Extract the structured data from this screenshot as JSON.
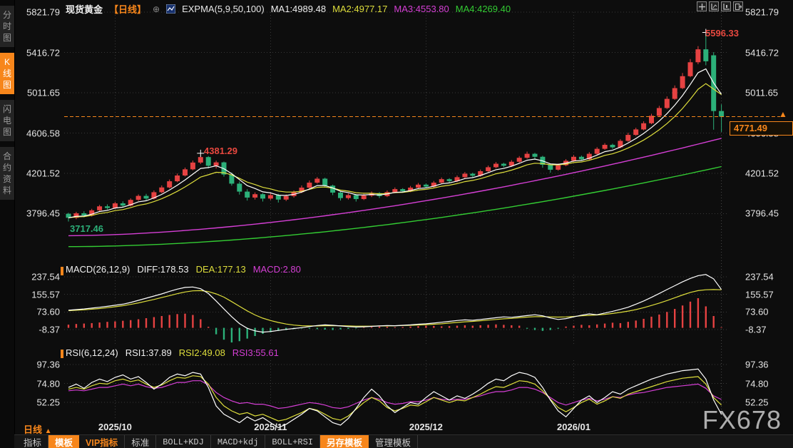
{
  "colors": {
    "up": "#e64242",
    "down": "#2cb079",
    "accent": "#f7861b",
    "ma1": "#ffffff",
    "ma2": "#dede3c",
    "ma3": "#d53fd5",
    "ma4": "#33cc33",
    "grid": "#383838",
    "label_red": "#e8483f",
    "label_green": "#2cb079"
  },
  "sidebar": {
    "items": [
      {
        "label": "分时图",
        "selected": false
      },
      {
        "label": "K线图",
        "selected": true
      },
      {
        "label": "闪电图",
        "selected": false
      },
      {
        "label": "合约资料",
        "selected": false
      }
    ]
  },
  "header": {
    "symbol": "现货黄金",
    "period_tag": "【日线】",
    "plus": "⊕",
    "indicator": "EXPMA(5,9,50,100)",
    "ma1": "MA1:4989.48",
    "ma2": "MA2:4977.17",
    "ma3": "MA3:4553.80",
    "ma4": "MA4:4269.40",
    "icons": [
      "crosshair-icon",
      "axis-scale-icon",
      "axis-panel-icon",
      "collapse-icon"
    ]
  },
  "macd_row": {
    "label": "MACD(26,12,9)",
    "diff": "DIFF:178.53",
    "dea": "DEA:177.13",
    "macd": "MACD:2.80"
  },
  "rsi_row": {
    "label": "RSI(6,12,24)",
    "rsi1": "RSI1:37.89",
    "rsi2": "RSI2:49.08",
    "rsi3": "RSI3:55.61"
  },
  "annotations": {
    "high1": "4381.29",
    "high2": "5596.33",
    "low": "3717.46",
    "current": "4771.49",
    "arrow": "▲"
  },
  "xaxis": {
    "period": "日线",
    "arrow": "▲"
  },
  "toolbar": {
    "items": [
      {
        "label": "指标",
        "style": "plain"
      },
      {
        "label": "模板",
        "style": "active"
      },
      {
        "label": "VIP指标",
        "style": "vip"
      },
      {
        "label": "标准",
        "style": "plain"
      },
      {
        "label": "BOLL+KDJ",
        "style": "mono"
      },
      {
        "label": "MACD+kdj",
        "style": "mono"
      },
      {
        "label": "BOLL+RSI",
        "style": "mono"
      },
      {
        "label": "另存模板",
        "style": "active"
      },
      {
        "label": "管理模板",
        "style": "plain"
      }
    ]
  },
  "watermark": "FX678",
  "chart_data": {
    "type": "candlestick",
    "symbol": "现货黄金",
    "period": "日线",
    "main_ticks": [
      5821.79,
      5416.72,
      5011.65,
      4606.58,
      4201.52,
      3796.45
    ],
    "current_price": 4771.49,
    "months": [
      {
        "label": "2025/10",
        "index": 6
      },
      {
        "label": "2025/11",
        "index": 26
      },
      {
        "label": "2025/12",
        "index": 46
      },
      {
        "label": "2026/01",
        "index": 65
      }
    ],
    "peaks": {
      "high1": 4381.29,
      "high1_index": 17,
      "high2": 5596.33,
      "high2_index": 82,
      "low": 3717.46,
      "low_index": 0
    },
    "expma": {
      "periods": [
        5,
        9,
        50,
        100
      ],
      "ma1": 4989.48,
      "ma2": 4977.17,
      "ma3": 4553.8,
      "ma4": 4269.4,
      "ma3_start": 3575,
      "ma4_start": 3465
    },
    "candles": [
      [
        3795,
        3805,
        3717.46,
        3755
      ],
      [
        3755,
        3815,
        3740,
        3800
      ],
      [
        3800,
        3820,
        3760,
        3778
      ],
      [
        3778,
        3845,
        3768,
        3830
      ],
      [
        3830,
        3885,
        3820,
        3870
      ],
      [
        3870,
        3890,
        3838,
        3853
      ],
      [
        3853,
        3915,
        3845,
        3900
      ],
      [
        3900,
        3920,
        3862,
        3878
      ],
      [
        3878,
        3950,
        3868,
        3935
      ],
      [
        3935,
        3990,
        3925,
        3975
      ],
      [
        3975,
        3995,
        3932,
        3948
      ],
      [
        3948,
        4030,
        3938,
        4012
      ],
      [
        4012,
        4080,
        4002,
        4060
      ],
      [
        4060,
        4140,
        4050,
        4122
      ],
      [
        4122,
        4200,
        4112,
        4180
      ],
      [
        4180,
        4260,
        4170,
        4242
      ],
      [
        4242,
        4330,
        4232,
        4310
      ],
      [
        4310,
        4381.29,
        4295,
        4365
      ],
      [
        4365,
        4375,
        4252,
        4278
      ],
      [
        4278,
        4330,
        4250,
        4312
      ],
      [
        4312,
        4320,
        4168,
        4190
      ],
      [
        4190,
        4210,
        4078,
        4098
      ],
      [
        4098,
        4120,
        3988,
        4018
      ],
      [
        4018,
        4042,
        3928,
        3958
      ],
      [
        3958,
        4010,
        3938,
        3992
      ],
      [
        3992,
        4002,
        3918,
        3948
      ],
      [
        3948,
        4000,
        3933,
        3983
      ],
      [
        3983,
        3995,
        3908,
        3938
      ],
      [
        3938,
        3990,
        3923,
        3973
      ],
      [
        3973,
        4030,
        3958,
        4013
      ],
      [
        4013,
        4080,
        4003,
        4058
      ],
      [
        4058,
        4130,
        4048,
        4108
      ],
      [
        4108,
        4165,
        4098,
        4148
      ],
      [
        4148,
        4158,
        4058,
        4078
      ],
      [
        4078,
        4088,
        3983,
        4008
      ],
      [
        4008,
        4018,
        3928,
        3953
      ],
      [
        3953,
        4000,
        3938,
        3983
      ],
      [
        3983,
        3993,
        3918,
        3943
      ],
      [
        3943,
        3995,
        3933,
        3978
      ],
      [
        3978,
        4020,
        3963,
        4003
      ],
      [
        4003,
        4013,
        3953,
        3973
      ],
      [
        3973,
        4030,
        3963,
        4013
      ],
      [
        4013,
        4060,
        4003,
        4043
      ],
      [
        4043,
        4053,
        4008,
        4023
      ],
      [
        4023,
        4075,
        4013,
        4058
      ],
      [
        4058,
        4105,
        4048,
        4088
      ],
      [
        4088,
        4100,
        4053,
        4068
      ],
      [
        4068,
        4125,
        4058,
        4108
      ],
      [
        4108,
        4160,
        4098,
        4143
      ],
      [
        4143,
        4153,
        4108,
        4123
      ],
      [
        4123,
        4180,
        4113,
        4163
      ],
      [
        4163,
        4215,
        4153,
        4198
      ],
      [
        4198,
        4208,
        4163,
        4178
      ],
      [
        4178,
        4240,
        4168,
        4223
      ],
      [
        4223,
        4280,
        4213,
        4263
      ],
      [
        4263,
        4315,
        4253,
        4298
      ],
      [
        4298,
        4308,
        4263,
        4278
      ],
      [
        4278,
        4335,
        4268,
        4318
      ],
      [
        4318,
        4375,
        4308,
        4358
      ],
      [
        4358,
        4420,
        4348,
        4398
      ],
      [
        4398,
        4408,
        4338,
        4368
      ],
      [
        4368,
        4378,
        4258,
        4288
      ],
      [
        4288,
        4298,
        4208,
        4238
      ],
      [
        4238,
        4300,
        4228,
        4283
      ],
      [
        4283,
        4345,
        4273,
        4328
      ],
      [
        4328,
        4385,
        4318,
        4368
      ],
      [
        4368,
        4380,
        4328,
        4343
      ],
      [
        4343,
        4415,
        4333,
        4398
      ],
      [
        4398,
        4465,
        4388,
        4448
      ],
      [
        4448,
        4505,
        4438,
        4488
      ],
      [
        4488,
        4500,
        4448,
        4463
      ],
      [
        4463,
        4545,
        4453,
        4528
      ],
      [
        4528,
        4610,
        4518,
        4588
      ],
      [
        4588,
        4660,
        4578,
        4643
      ],
      [
        4643,
        4725,
        4633,
        4705
      ],
      [
        4705,
        4800,
        4695,
        4780
      ],
      [
        4780,
        4880,
        4770,
        4858
      ],
      [
        4858,
        4975,
        4848,
        4950
      ],
      [
        4950,
        5085,
        4940,
        5058
      ],
      [
        5058,
        5210,
        5048,
        5178
      ],
      [
        5178,
        5350,
        5168,
        5318
      ],
      [
        5318,
        5480,
        5298,
        5448
      ],
      [
        5448,
        5596.33,
        5288,
        5328
      ],
      [
        5388,
        5420,
        4640,
        4828
      ],
      [
        4828,
        4895,
        4618,
        4771.49
      ]
    ],
    "macd": {
      "params": [
        26,
        12,
        9
      ],
      "diff_last": 178.53,
      "dea_last": 177.13,
      "macd_last": 2.8,
      "ticks": [
        237.54,
        155.57,
        73.6,
        -8.37
      ],
      "diff": [
        82,
        85,
        88,
        92,
        96,
        100,
        105,
        110,
        118,
        128,
        138,
        148,
        158,
        170,
        180,
        188,
        190,
        182,
        160,
        125,
        88,
        52,
        20,
        -2,
        -14,
        -20,
        -17,
        -12,
        -7,
        -3,
        1,
        6,
        11,
        14,
        12,
        9,
        6,
        4,
        5,
        7,
        9,
        11,
        10,
        12,
        14,
        17,
        19,
        22,
        26,
        30,
        34,
        37,
        35,
        39,
        43,
        47,
        51,
        49,
        53,
        57,
        61,
        56,
        46,
        39,
        43,
        51,
        59,
        65,
        61,
        69,
        77,
        86,
        96,
        110,
        125,
        142,
        160,
        178,
        196,
        214,
        230,
        243,
        248,
        228,
        178.53
      ],
      "dea": [
        80,
        82,
        84,
        87,
        90,
        94,
        98,
        103,
        109,
        116,
        124,
        132,
        141,
        150,
        159,
        167,
        172,
        173,
        169,
        158,
        143,
        122,
        100,
        79,
        60,
        45,
        34,
        25,
        18,
        13,
        10,
        9,
        9,
        10,
        10,
        10,
        9,
        8,
        8,
        8,
        9,
        9,
        10,
        11,
        12,
        13,
        15,
        17,
        19,
        22,
        25,
        28,
        30,
        33,
        36,
        39,
        42,
        44,
        47,
        50,
        52,
        52,
        51,
        50,
        51,
        53,
        56,
        58,
        60,
        63,
        67,
        72,
        78,
        85,
        94,
        104,
        115,
        127,
        140,
        153,
        165,
        173,
        177,
        178,
        177.13
      ],
      "hist": [
        15,
        18,
        20,
        22,
        25,
        28,
        30,
        33,
        36,
        40,
        45,
        50,
        55,
        60,
        64,
        66,
        60,
        40,
        5,
        -30,
        -55,
        -68,
        -62,
        -50,
        -38,
        -28,
        -20,
        -14,
        -10,
        -6,
        -3,
        -4,
        -6,
        -8,
        -10,
        -7,
        -5,
        -3,
        2,
        4,
        6,
        5,
        3,
        4,
        6,
        8,
        10,
        9,
        7,
        8,
        10,
        12,
        10,
        12,
        14,
        16,
        14,
        12,
        10,
        -4,
        -10,
        -14,
        -10,
        -4,
        6,
        10,
        14,
        12,
        16,
        20,
        24,
        22,
        28,
        34,
        42,
        52,
        62,
        74,
        88,
        104,
        122,
        138,
        100,
        55,
        2.8
      ]
    },
    "rsi": {
      "params": [
        6,
        12,
        24
      ],
      "rsi1_last": 37.89,
      "rsi2_last": 49.08,
      "rsi3_last": 55.61,
      "ticks": [
        97.36,
        74.8,
        52.25
      ],
      "rsi1": [
        70,
        74,
        69,
        76,
        80,
        77,
        82,
        85,
        80,
        83,
        76,
        68,
        74,
        82,
        86,
        84,
        88,
        86,
        70,
        48,
        38,
        33,
        28,
        35,
        30,
        34,
        28,
        22,
        26,
        32,
        38,
        45,
        42,
        35,
        28,
        25,
        33,
        45,
        58,
        68,
        60,
        48,
        40,
        46,
        52,
        50,
        58,
        65,
        60,
        55,
        60,
        57,
        62,
        68,
        75,
        80,
        78,
        84,
        88,
        86,
        82,
        70,
        55,
        42,
        35,
        45,
        55,
        60,
        52,
        58,
        65,
        62,
        68,
        72,
        76,
        80,
        83,
        86,
        88,
        90,
        91,
        92,
        80,
        55,
        37.89
      ],
      "rsi2": [
        68,
        70,
        68,
        72,
        75,
        74,
        78,
        80,
        77,
        79,
        74,
        70,
        73,
        78,
        82,
        81,
        84,
        83,
        74,
        58,
        48,
        42,
        38,
        40,
        36,
        38,
        34,
        30,
        32,
        36,
        40,
        45,
        43,
        38,
        33,
        31,
        36,
        44,
        52,
        58,
        54,
        46,
        42,
        45,
        49,
        48,
        53,
        58,
        55,
        52,
        55,
        54,
        58,
        62,
        67,
        71,
        70,
        74,
        78,
        77,
        74,
        66,
        56,
        46,
        41,
        46,
        52,
        56,
        50,
        54,
        59,
        57,
        62,
        65,
        68,
        71,
        74,
        77,
        79,
        81,
        82,
        83,
        74,
        58,
        49.08
      ],
      "rsi3": [
        66,
        67,
        66,
        68,
        70,
        70,
        72,
        74,
        72,
        74,
        71,
        69,
        70,
        73,
        76,
        76,
        78,
        78,
        73,
        64,
        58,
        54,
        51,
        52,
        50,
        50,
        48,
        45,
        46,
        48,
        50,
        52,
        51,
        49,
        46,
        45,
        47,
        51,
        55,
        58,
        56,
        52,
        50,
        51,
        53,
        53,
        55,
        58,
        56,
        55,
        56,
        56,
        58,
        60,
        63,
        65,
        65,
        67,
        70,
        70,
        68,
        64,
        58,
        52,
        49,
        52,
        55,
        57,
        54,
        56,
        59,
        58,
        61,
        63,
        64,
        66,
        68,
        70,
        71,
        72,
        73,
        74,
        69,
        60,
        55.61
      ]
    }
  }
}
